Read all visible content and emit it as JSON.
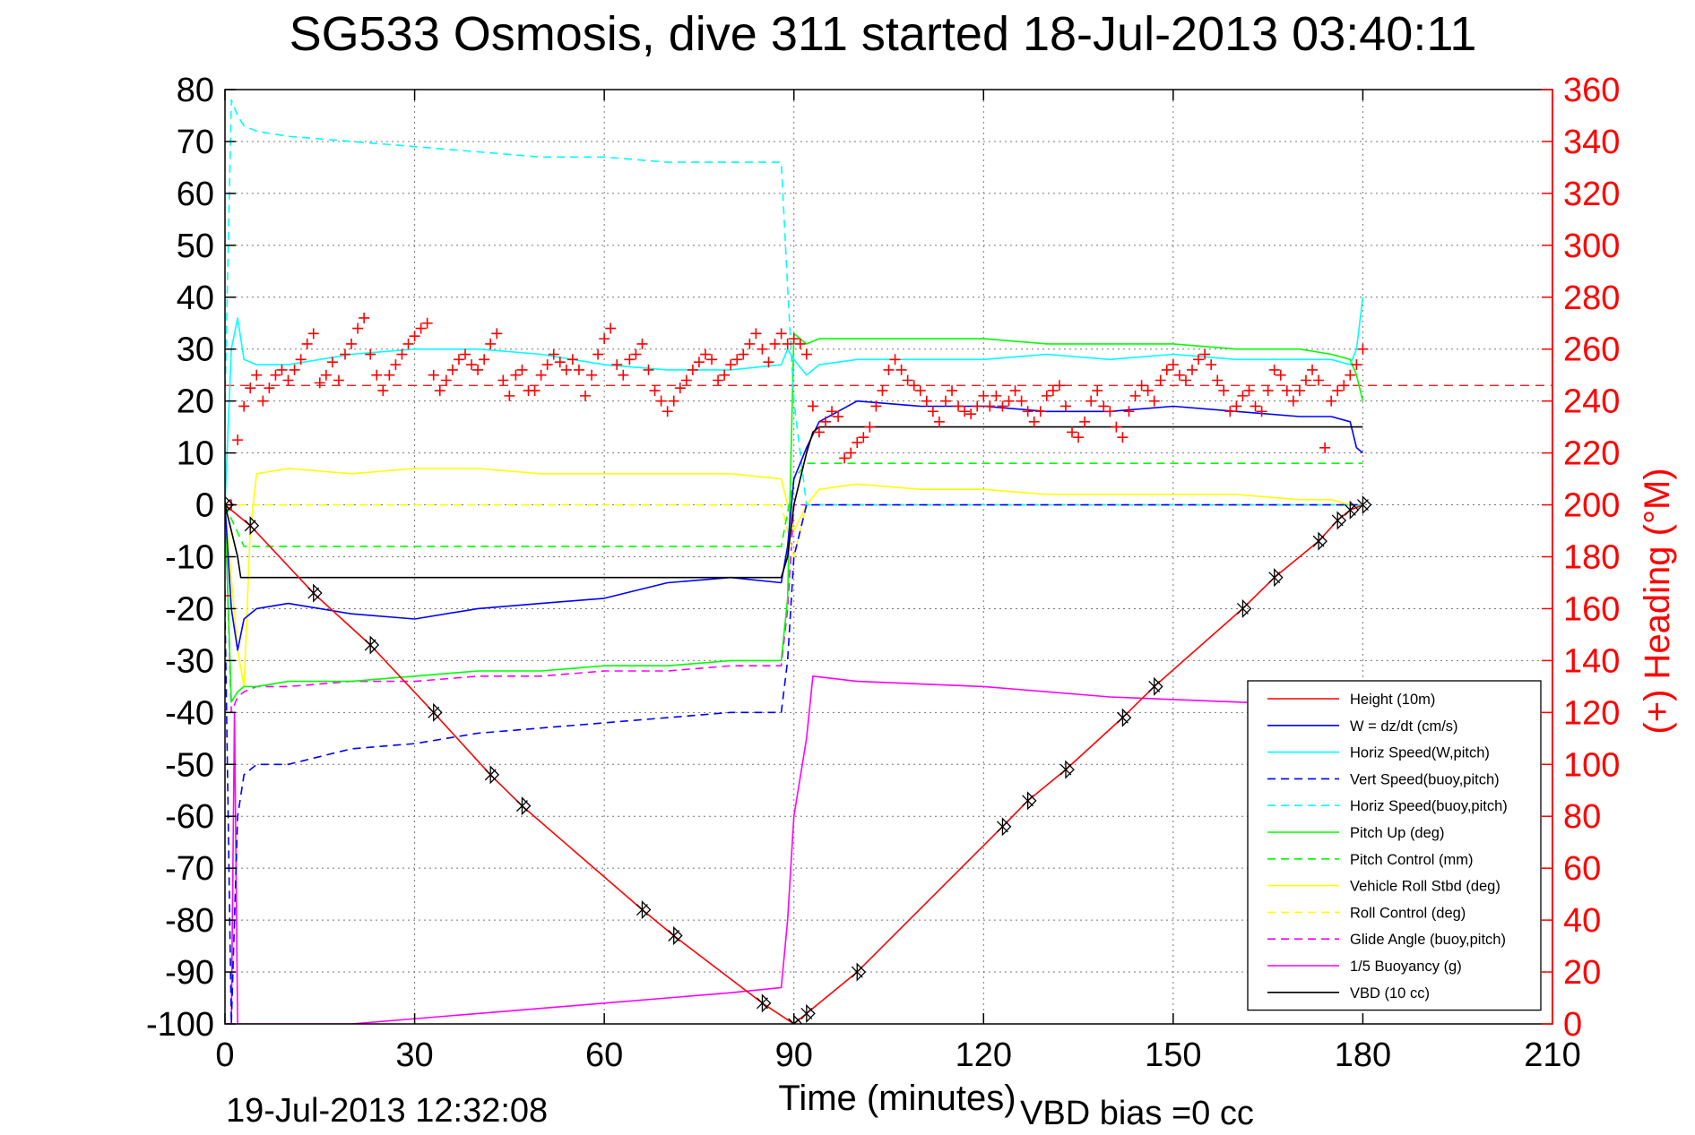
{
  "chart_data": {
    "type": "line",
    "title": "SG533 Osmosis, dive 311 started 18-Jul-2013 03:40:11",
    "xlabel": "Time (minutes)",
    "ylabel": "",
    "ylabel_right": "(+) Heading (°M)",
    "xlim": [
      0,
      210
    ],
    "ylim": [
      -100,
      80
    ],
    "ylim_right": [
      0,
      360
    ],
    "xticks": [
      0,
      30,
      60,
      90,
      120,
      150,
      180,
      210
    ],
    "yticks": [
      80,
      70,
      60,
      50,
      40,
      30,
      20,
      10,
      0,
      -10,
      -20,
      -30,
      -40,
      -50,
      -60,
      -70,
      -80,
      -90,
      -100
    ],
    "yticks_right": [
      360,
      340,
      320,
      300,
      280,
      260,
      240,
      220,
      200,
      180,
      160,
      140,
      120,
      100,
      80,
      60,
      40,
      20,
      0
    ],
    "grid": true,
    "legend_position": "bottom-right",
    "bottom_left_text": "19-Jul-2013 12:32:08",
    "bottom_right_text": "VBD bias =0 cc",
    "colors": {
      "height": "#ff0000",
      "w": "#0000ff",
      "horiz_w": "#00ffff",
      "vert_buoy": "#0000ff",
      "horiz_buoy": "#00ffff",
      "pitch_up": "#00ff00",
      "pitch_control": "#00ff00",
      "roll": "#ffff00",
      "roll_control": "#ffff00",
      "glide": "#ff00ff",
      "buoyancy": "#ff00ff",
      "vbd": "#000000",
      "heading": "#ff0000",
      "right_axis": "#ff0000"
    },
    "series": [
      {
        "name": "Height (10m)",
        "key": "height",
        "style": "solid",
        "markers": "triangle-x",
        "x": [
          0,
          4,
          14,
          23,
          33,
          42,
          47,
          66,
          71,
          85,
          90,
          92,
          100,
          123,
          127,
          133,
          142,
          147,
          161,
          166,
          173,
          176,
          178,
          180
        ],
        "y": [
          0,
          -4,
          -17,
          -27,
          -40,
          -52,
          -58,
          -78,
          -83,
          -96,
          -100,
          -98,
          -90,
          -62,
          -57,
          -51,
          -41,
          -35,
          -20,
          -14,
          -7,
          -3,
          -1,
          0
        ]
      },
      {
        "name": "W = dz/dt (cm/s)",
        "key": "w",
        "style": "solid",
        "x": [
          0,
          1,
          2,
          3,
          5,
          10,
          20,
          30,
          40,
          50,
          60,
          70,
          80,
          88,
          89,
          90,
          92,
          94,
          100,
          110,
          120,
          130,
          140,
          150,
          160,
          170,
          175,
          178,
          179,
          180
        ],
        "y": [
          0,
          -20,
          -28,
          -22,
          -20,
          -19,
          -21,
          -22,
          -20,
          -19,
          -18,
          -15,
          -14,
          -15,
          -8,
          5,
          11,
          16,
          20,
          19,
          19,
          18,
          18,
          19,
          18,
          17,
          17,
          16,
          11,
          10
        ]
      },
      {
        "name": "Horiz Speed(W,pitch)",
        "key": "horiz_w",
        "style": "solid",
        "x": [
          0,
          1,
          2,
          3,
          5,
          10,
          20,
          30,
          40,
          50,
          60,
          70,
          80,
          88,
          89,
          90,
          92,
          94,
          100,
          110,
          120,
          130,
          140,
          150,
          160,
          170,
          175,
          178,
          179,
          180
        ],
        "y": [
          0,
          30,
          36,
          28,
          27,
          27,
          29,
          30,
          30,
          29,
          27,
          26,
          26,
          27,
          30,
          28,
          25,
          27,
          28,
          28,
          28,
          29,
          28,
          29,
          28,
          28,
          28,
          27,
          30,
          40
        ]
      },
      {
        "name": "Vert Speed(buoy,pitch)",
        "key": "vert_buoy",
        "style": "dashed",
        "x": [
          0,
          1,
          2,
          3,
          5,
          10,
          20,
          30,
          40,
          50,
          60,
          70,
          80,
          88,
          89,
          90,
          92,
          94,
          100,
          120,
          140,
          160,
          180
        ],
        "y": [
          -20,
          -100,
          -60,
          -52,
          -50,
          -50,
          -47,
          -46,
          -44,
          -43,
          -42,
          -41,
          -40,
          -40,
          -30,
          -10,
          0,
          0,
          0,
          0,
          0,
          0,
          0
        ]
      },
      {
        "name": "Horiz Speed(buoy,pitch)",
        "key": "horiz_buoy",
        "style": "dashed",
        "x": [
          0,
          1,
          2,
          3,
          5,
          10,
          20,
          30,
          40,
          50,
          60,
          70,
          80,
          88,
          89,
          90,
          92,
          94,
          100,
          120,
          140,
          160,
          180
        ],
        "y": [
          20,
          78,
          75,
          73,
          72,
          71,
          70,
          69,
          68,
          67,
          67,
          66,
          66,
          66,
          42,
          20,
          0,
          0,
          0,
          0,
          0,
          0,
          0
        ]
      },
      {
        "name": "Pitch Up (deg)",
        "key": "pitch_up",
        "style": "solid",
        "x": [
          0,
          1,
          2,
          3,
          5,
          10,
          20,
          30,
          40,
          50,
          60,
          70,
          80,
          88,
          89,
          90,
          92,
          94,
          100,
          110,
          120,
          130,
          140,
          150,
          160,
          170,
          175,
          178,
          179,
          180
        ],
        "y": [
          0,
          -38,
          -36,
          -35,
          -35,
          -34,
          -34,
          -33,
          -32,
          -32,
          -31,
          -31,
          -30,
          -30,
          -18,
          33,
          31,
          32,
          32,
          32,
          32,
          31,
          31,
          31,
          30,
          30,
          29,
          28,
          25,
          20
        ]
      },
      {
        "name": "Pitch Control (mm)",
        "key": "pitch_control",
        "style": "dashed",
        "x": [
          0,
          3,
          10,
          30,
          60,
          88,
          90,
          92,
          100,
          120,
          150,
          180
        ],
        "y": [
          0,
          -8,
          -8,
          -8,
          -8,
          -8,
          5,
          8,
          8,
          8,
          8,
          8
        ]
      },
      {
        "name": "Vehicle Roll Stbd (deg)",
        "key": "roll",
        "style": "solid",
        "x": [
          0,
          2,
          3,
          4,
          5,
          10,
          20,
          30,
          40,
          50,
          60,
          70,
          80,
          88,
          90,
          92,
          94,
          100,
          110,
          120,
          130,
          140,
          150,
          160,
          170,
          175,
          178,
          180
        ],
        "y": [
          0,
          -28,
          -35,
          -5,
          6,
          7,
          6,
          7,
          7,
          6,
          6,
          6,
          6,
          5,
          -5,
          0,
          3,
          4,
          3,
          3,
          2,
          2,
          2,
          2,
          1,
          1,
          0,
          0
        ]
      },
      {
        "name": "Roll Control (deg)",
        "key": "roll_control",
        "style": "dashed",
        "x": [
          0,
          3,
          10,
          30,
          60,
          88,
          90,
          92,
          100,
          130,
          160,
          180
        ],
        "y": [
          0,
          0,
          0,
          0,
          0,
          0,
          -10,
          0,
          0,
          0,
          0,
          0
        ]
      },
      {
        "name": "Glide Angle (buoy,pitch)",
        "key": "glide",
        "style": "dashed",
        "x": [
          0,
          1,
          2,
          3,
          5,
          10,
          20,
          30,
          40,
          50,
          60,
          70,
          80,
          88,
          89,
          90,
          92,
          94,
          100,
          120,
          150,
          180
        ],
        "y": [
          0,
          -40,
          -37,
          -36,
          -35,
          -35,
          -34,
          -34,
          -33,
          -33,
          -32,
          -32,
          -31,
          -31,
          -20,
          0,
          0,
          0,
          0,
          0,
          0,
          0
        ]
      },
      {
        "name": "1/5 Buoyancy (g)",
        "key": "buoyancy",
        "style": "solid",
        "x": [
          0,
          1,
          1.5,
          2,
          20,
          40,
          60,
          80,
          88,
          89,
          90,
          92,
          93,
          100,
          120,
          140,
          160,
          180
        ],
        "y": [
          -100,
          -100,
          -40,
          -100,
          -100,
          -98,
          -96,
          -94,
          -93,
          -80,
          -60,
          -45,
          -33,
          -34,
          -35,
          -37,
          -38,
          -39
        ]
      },
      {
        "name": "VBD (10 cc)",
        "key": "vbd",
        "style": "solid",
        "x": [
          0,
          1,
          2,
          2.5,
          10,
          30,
          60,
          88,
          89,
          90,
          92,
          93,
          94,
          100,
          120,
          150,
          180
        ],
        "y": [
          0,
          -5,
          -10,
          -14,
          -14,
          -14,
          -14,
          -14,
          -10,
          0,
          10,
          14,
          15,
          15,
          15,
          15,
          15
        ]
      }
    ],
    "heading": {
      "name": "Heading",
      "axis": "right",
      "marker": "+",
      "x": [
        0,
        1,
        2,
        3,
        4,
        5,
        6,
        7,
        8,
        9,
        10,
        11,
        12,
        13,
        14,
        15,
        16,
        17,
        18,
        19,
        20,
        21,
        22,
        23,
        24,
        25,
        26,
        27,
        28,
        29,
        30,
        31,
        32,
        33,
        34,
        35,
        36,
        37,
        38,
        39,
        40,
        41,
        42,
        43,
        44,
        45,
        46,
        47,
        48,
        49,
        50,
        51,
        52,
        53,
        54,
        55,
        56,
        57,
        58,
        59,
        60,
        61,
        62,
        63,
        64,
        65,
        66,
        67,
        68,
        69,
        70,
        71,
        72,
        73,
        74,
        75,
        76,
        77,
        78,
        79,
        80,
        81,
        82,
        83,
        84,
        85,
        86,
        87,
        88,
        89,
        90,
        91,
        92,
        93,
        94,
        95,
        96,
        97,
        98,
        99,
        100,
        101,
        102,
        103,
        104,
        105,
        106,
        107,
        108,
        109,
        110,
        111,
        112,
        113,
        114,
        115,
        116,
        117,
        118,
        119,
        120,
        121,
        122,
        123,
        124,
        125,
        126,
        127,
        128,
        129,
        130,
        131,
        132,
        133,
        134,
        135,
        136,
        137,
        138,
        139,
        140,
        141,
        142,
        143,
        144,
        145,
        146,
        147,
        148,
        149,
        150,
        151,
        152,
        153,
        154,
        155,
        156,
        157,
        158,
        159,
        160,
        161,
        162,
        163,
        164,
        165,
        166,
        167,
        168,
        169,
        170,
        171,
        172,
        173,
        174,
        175,
        176,
        177,
        178,
        179,
        180
      ],
      "y": [
        165,
        200,
        225,
        238,
        245,
        250,
        240,
        245,
        250,
        252,
        248,
        252,
        256,
        262,
        266,
        247,
        250,
        255,
        248,
        258,
        262,
        268,
        272,
        258,
        250,
        244,
        250,
        254,
        258,
        262,
        265,
        268,
        270,
        250,
        244,
        248,
        252,
        256,
        258,
        254,
        252,
        256,
        262,
        266,
        248,
        242,
        250,
        252,
        244,
        244,
        250,
        254,
        258,
        255,
        252,
        256,
        252,
        242,
        250,
        258,
        264,
        268,
        254,
        250,
        256,
        258,
        262,
        252,
        244,
        240,
        236,
        240,
        245,
        248,
        252,
        255,
        258,
        256,
        248,
        250,
        254,
        256,
        258,
        262,
        266,
        260,
        255,
        262,
        266,
        262,
        264,
        262,
        258,
        238,
        228,
        232,
        236,
        234,
        218,
        220,
        224,
        226,
        230,
        238,
        244,
        252,
        256,
        252,
        248,
        246,
        244,
        240,
        236,
        232,
        240,
        244,
        238,
        236,
        235,
        238,
        242,
        238,
        242,
        238,
        240,
        244,
        240,
        236,
        232,
        236,
        242,
        244,
        246,
        238,
        228,
        226,
        232,
        240,
        244,
        238,
        236,
        230,
        226,
        236,
        242,
        246,
        244,
        240,
        248,
        252,
        254,
        250,
        248,
        252,
        256,
        258,
        254,
        248,
        244,
        236,
        238,
        242,
        244,
        238,
        236,
        244,
        252,
        250,
        244,
        240,
        244,
        248,
        252,
        248,
        222,
        240,
        244,
        246,
        250,
        254,
        260
      ]
    },
    "reference_lines": [
      {
        "axis": "right",
        "value": 246,
        "style": "dashed",
        "color": "#ff0000"
      }
    ]
  }
}
